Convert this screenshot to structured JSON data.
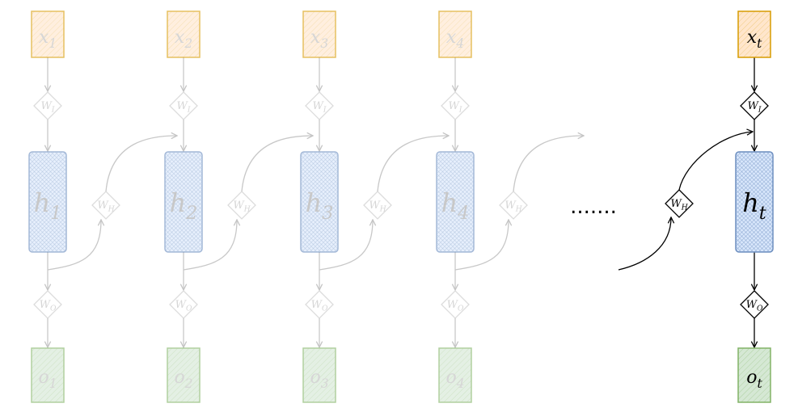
{
  "diagram": {
    "timesteps": [
      {
        "input": {
          "base": "x",
          "sub": "1"
        },
        "hidden": {
          "base": "h",
          "sub": "1"
        },
        "output": {
          "base": "o",
          "sub": "1"
        },
        "w_input": {
          "base": "W",
          "sub": "I"
        },
        "w_hidden": {
          "base": "W",
          "sub": "H"
        },
        "w_output": {
          "base": "W",
          "sub": "O"
        },
        "faded": true
      },
      {
        "input": {
          "base": "x",
          "sub": "2"
        },
        "hidden": {
          "base": "h",
          "sub": "2"
        },
        "output": {
          "base": "o",
          "sub": "2"
        },
        "w_input": {
          "base": "W",
          "sub": "I"
        },
        "w_hidden": {
          "base": "W",
          "sub": "H"
        },
        "w_output": {
          "base": "W",
          "sub": "O"
        },
        "faded": true
      },
      {
        "input": {
          "base": "x",
          "sub": "3"
        },
        "hidden": {
          "base": "h",
          "sub": "3"
        },
        "output": {
          "base": "o",
          "sub": "3"
        },
        "w_input": {
          "base": "W",
          "sub": "I"
        },
        "w_hidden": {
          "base": "W",
          "sub": "H"
        },
        "w_output": {
          "base": "W",
          "sub": "O"
        },
        "faded": true
      },
      {
        "input": {
          "base": "x",
          "sub": "4"
        },
        "hidden": {
          "base": "h",
          "sub": "4"
        },
        "output": {
          "base": "o",
          "sub": "4"
        },
        "w_input": {
          "base": "W",
          "sub": "I"
        },
        "w_hidden": {
          "base": "W",
          "sub": "H"
        },
        "w_output": {
          "base": "W",
          "sub": "O"
        },
        "faded": true
      },
      {
        "input": {
          "base": "x",
          "sub": "t"
        },
        "hidden": {
          "base": "h",
          "sub": "t"
        },
        "output": {
          "base": "o",
          "sub": "t"
        },
        "w_input": {
          "base": "W",
          "sub": "I"
        },
        "w_hidden": {
          "base": "W",
          "sub": "H"
        },
        "w_output": {
          "base": "W",
          "sub": "O"
        },
        "faded": false
      }
    ],
    "ellipsis": ".......",
    "colors": {
      "input_stroke": "#d79b00",
      "input_fill": "#ffe6cc",
      "hidden_stroke": "#6c8ebf",
      "hidden_fill": "#dae8fc",
      "output_stroke": "#82b366",
      "output_fill": "#d5e8d4",
      "faded": "#bdbdbd",
      "active": "#000000"
    }
  }
}
